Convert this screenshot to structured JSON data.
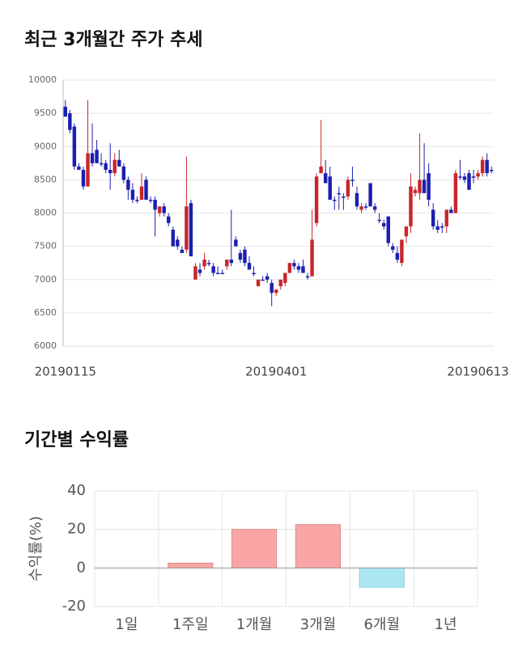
{
  "chart_data": [
    {
      "type": "candlestick",
      "title": "최근 3개월간 주가 추세",
      "categories": [
        "20190115",
        null,
        null,
        null,
        null,
        null,
        null,
        null,
        null,
        null,
        null,
        null,
        null,
        null,
        null,
        null,
        null,
        null,
        null,
        null,
        null,
        null,
        null,
        null,
        null,
        null,
        null,
        null,
        null,
        null,
        null,
        null,
        null,
        null,
        null,
        null,
        null,
        null,
        null,
        null,
        null,
        null,
        null,
        null,
        null,
        null,
        null,
        "20190401",
        null,
        null,
        null,
        null,
        null,
        null,
        null,
        null,
        null,
        null,
        null,
        null,
        null,
        null,
        null,
        null,
        null,
        null,
        null,
        null,
        null,
        null,
        null,
        null,
        null,
        null,
        null,
        null,
        null,
        null,
        null,
        null,
        null,
        null,
        null,
        null,
        null,
        null,
        null,
        null,
        null,
        null,
        null,
        null,
        "20190613",
        null,
        null,
        null
      ],
      "open": [
        9600,
        9500,
        9300,
        8700,
        8650,
        8400,
        8900,
        8950,
        8750,
        8750,
        8650,
        8600,
        8800,
        8700,
        8500,
        8350,
        8200,
        8200,
        8500,
        8200,
        8200,
        8000,
        8100,
        7950,
        7750,
        7600,
        7450,
        7450,
        8150,
        7000,
        7150,
        7200,
        7250,
        7200,
        7100,
        7100,
        7200,
        7300,
        7600,
        7400,
        7450,
        7250,
        7100,
        6900,
        7000,
        7050,
        6950,
        6800,
        6900,
        6950,
        7100,
        7250,
        7200,
        7200,
        7050,
        7050,
        7850,
        8600,
        8600,
        8550,
        8200,
        8300,
        8250,
        8250,
        8500,
        8300,
        8050,
        8100,
        8450,
        8100,
        7900,
        7850,
        7950,
        7500,
        7400,
        7250,
        7650,
        7800,
        8300,
        8300,
        8500,
        8600,
        8050,
        7800,
        7800,
        7800,
        8050,
        8000,
        8550,
        8550,
        8600,
        8550,
        8550,
        8600,
        8800,
        8650
      ],
      "high": [
        9700,
        9550,
        9350,
        8750,
        8700,
        9700,
        9350,
        9100,
        8900,
        8800,
        9050,
        8900,
        8950,
        8750,
        8550,
        8450,
        8250,
        8600,
        8550,
        8250,
        8250,
        8100,
        8150,
        8000,
        7800,
        7650,
        7500,
        8850,
        8200,
        7250,
        7250,
        7400,
        7300,
        7250,
        7200,
        7150,
        7300,
        8050,
        7650,
        7450,
        7500,
        7350,
        7200,
        7000,
        7050,
        7100,
        7000,
        6850,
        7000,
        7100,
        7250,
        7300,
        7250,
        7300,
        7100,
        8050,
        8600,
        9400,
        8800,
        8700,
        8250,
        8400,
        8300,
        8550,
        8700,
        8400,
        8150,
        8150,
        8450,
        8150,
        8000,
        7900,
        7950,
        7550,
        7500,
        7600,
        7800,
        8600,
        8400,
        9200,
        9050,
        8750,
        8150,
        7900,
        7850,
        8050,
        8100,
        8650,
        8800,
        8600,
        8650,
        8650,
        8650,
        8850,
        8900,
        8700
      ],
      "low": [
        9450,
        9200,
        8650,
        8650,
        8350,
        8400,
        8700,
        8750,
        8700,
        8600,
        8350,
        8550,
        8700,
        8450,
        8200,
        8150,
        8150,
        8200,
        8200,
        8150,
        7650,
        7950,
        7950,
        7800,
        7500,
        7450,
        7400,
        7400,
        7350,
        7000,
        7050,
        7150,
        7200,
        7050,
        7100,
        7100,
        7150,
        7200,
        7500,
        7250,
        7200,
        7150,
        7050,
        6900,
        7000,
        6950,
        6600,
        6750,
        6850,
        6900,
        7100,
        7150,
        7100,
        7100,
        7000,
        7050,
        7800,
        8600,
        8450,
        8200,
        8050,
        8050,
        8050,
        8200,
        8400,
        8050,
        8000,
        8050,
        8100,
        8000,
        7850,
        7750,
        7500,
        7400,
        7250,
        7200,
        7550,
        7700,
        8250,
        8200,
        8300,
        8100,
        7750,
        7700,
        7700,
        7700,
        8000,
        8000,
        8500,
        8450,
        8350,
        8450,
        8500,
        8550,
        8550,
        8600
      ],
      "close": [
        9450,
        9250,
        8700,
        8650,
        8400,
        8900,
        8750,
        8750,
        8750,
        8650,
        8600,
        8800,
        8700,
        8500,
        8350,
        8200,
        8200,
        8400,
        8200,
        8200,
        8050,
        8100,
        8000,
        7850,
        7500,
        7500,
        7400,
        8100,
        7350,
        7200,
        7100,
        7300,
        7250,
        7100,
        7100,
        7100,
        7300,
        7250,
        7500,
        7300,
        7250,
        7150,
        7100,
        7000,
        7000,
        7000,
        6800,
        6850,
        7000,
        7100,
        7250,
        7200,
        7150,
        7100,
        7050,
        7600,
        8550,
        8700,
        8450,
        8200,
        8200,
        8300,
        8250,
        8500,
        8500,
        8100,
        8100,
        8100,
        8100,
        8050,
        7900,
        7800,
        7550,
        7450,
        7300,
        7600,
        7800,
        8400,
        8350,
        8500,
        8300,
        8200,
        7800,
        7750,
        7800,
        8050,
        8000,
        8600,
        8550,
        8500,
        8350,
        8550,
        8600,
        8800,
        8600,
        8650
      ],
      "up_color": "#c8262b",
      "down_color": "#1b1fb0",
      "ylim": [
        6000,
        10000
      ],
      "yticks": [
        6000,
        6500,
        7000,
        7500,
        8000,
        8500,
        9000,
        9500,
        10000
      ],
      "grid": true
    },
    {
      "type": "bar",
      "title": "기간별 수익률",
      "y_label": "수익률(%)",
      "categories": [
        "1일",
        "1주일",
        "1개월",
        "3개월",
        "6개월",
        "1년"
      ],
      "values": [
        null,
        2.5,
        20,
        22.5,
        -10,
        null
      ],
      "positive_color": "#f9a5a5",
      "negative_color": "#abe6f2",
      "ylim": [
        -20,
        40
      ],
      "yticks": [
        -20,
        0,
        20,
        40
      ],
      "grid": true
    }
  ]
}
